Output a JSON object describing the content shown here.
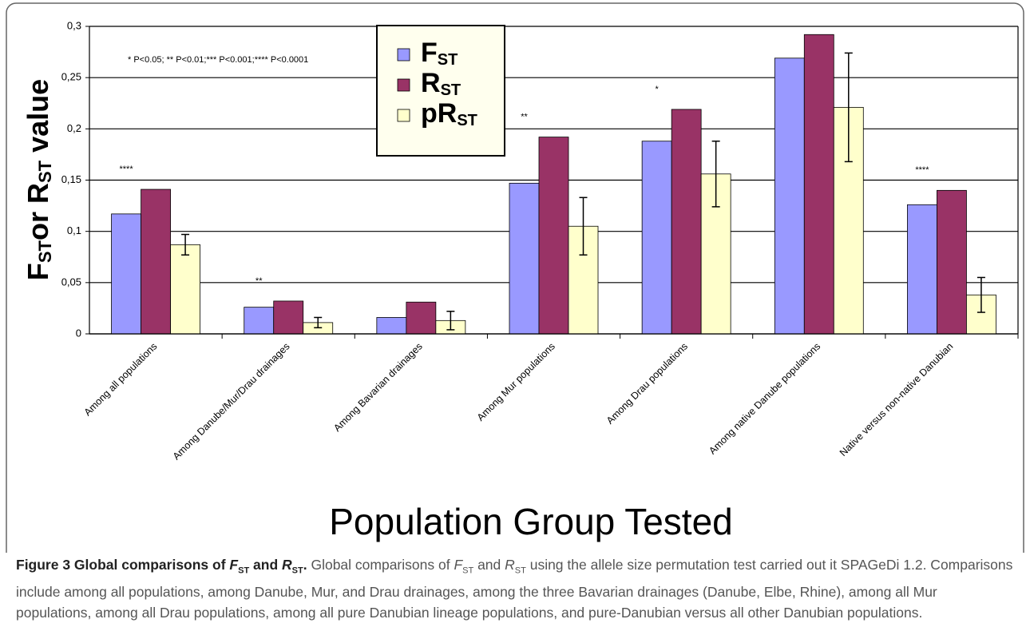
{
  "chart_data": {
    "type": "bar",
    "y_label": [
      {
        "text": "F"
      },
      {
        "text": "ST",
        "sub": true
      },
      {
        "text": "or R"
      },
      {
        "text": "ST",
        "sub": true
      },
      {
        "text": " value"
      }
    ],
    "x_label": "Population Group Tested",
    "note": "* P<0.05; ** P<0.01;*** P<0.001;**** P<0.0001",
    "categories": [
      "Among all populations",
      "Among Danube/Mur/Drau drainages",
      "Among Bavarian drainages",
      "Among Mur populations",
      "Among Drau populations",
      "Among native Danube populations",
      "Native versus non-native Danubian"
    ],
    "significance": [
      "****",
      "**",
      null,
      "**",
      "*",
      null,
      "****"
    ],
    "series": [
      {
        "name": "F",
        "name_subscript": "ST",
        "color": "#9999ff",
        "values": [
          0.117,
          0.026,
          0.016,
          0.147,
          0.188,
          0.269,
          0.126
        ]
      },
      {
        "name": "R",
        "name_subscript": "ST",
        "color": "#993366",
        "values": [
          0.141,
          0.032,
          0.031,
          0.192,
          0.219,
          0.292,
          0.14
        ]
      },
      {
        "name": "pR",
        "name_subscript": "ST",
        "color": "#ffffcc",
        "values": [
          0.087,
          0.011,
          0.013,
          0.105,
          0.156,
          0.221,
          0.038
        ],
        "errors": [
          0.01,
          0.005,
          0.009,
          0.028,
          0.032,
          0.053,
          0.017
        ]
      }
    ],
    "ylim": [
      0,
      0.3
    ],
    "yticks": [
      {
        "value": 0,
        "label": "0"
      },
      {
        "value": 0.05,
        "label": "0,05"
      },
      {
        "value": 0.1,
        "label": "0,1"
      },
      {
        "value": 0.15,
        "label": "0,15"
      },
      {
        "value": 0.2,
        "label": "0,2"
      },
      {
        "value": 0.25,
        "label": "0,25"
      },
      {
        "value": 0.3,
        "label": "0,3"
      }
    ],
    "grid": true
  },
  "caption": [
    {
      "text": "Figure 3 Global comparisons of ",
      "bold": true
    },
    {
      "text": "F",
      "bold": true,
      "italic": true
    },
    {
      "text": "ST",
      "bold": true,
      "sub": true
    },
    {
      "text": " and ",
      "bold": true
    },
    {
      "text": "R",
      "bold": true,
      "italic": true
    },
    {
      "text": "ST",
      "bold": true,
      "sub": true
    },
    {
      "text": ".",
      "bold": true
    },
    {
      "text": " Global comparisons of "
    },
    {
      "text": "F",
      "italic": true
    },
    {
      "text": "ST",
      "sub": true
    },
    {
      "text": " and "
    },
    {
      "text": "R",
      "italic": true
    },
    {
      "text": "ST",
      "sub": true
    },
    {
      "text": " using the allele size permutation test carried out it SPAGeDi 1.2. Comparisons include among all populations, among Danube, Mur, and Drau drainages, among the three Bavarian drainages (Danube, Elbe, Rhine), among all Mur populations, among all Drau populations, among all pure Danubian lineage populations, and pure-Danubian versus all other Danubian populations."
    }
  ]
}
